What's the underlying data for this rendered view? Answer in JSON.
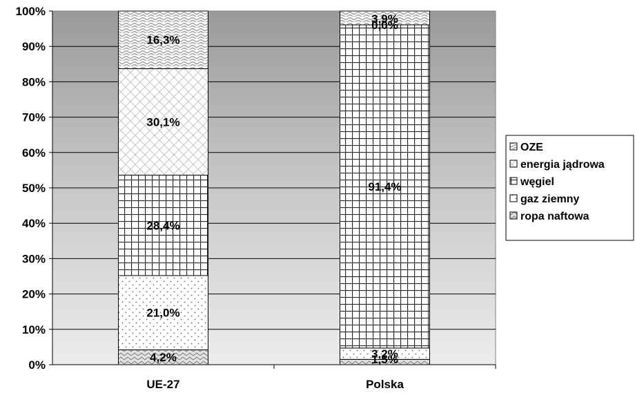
{
  "chart_data": {
    "type": "bar",
    "stacked": true,
    "categories": [
      "UE-27",
      "Polska"
    ],
    "series": [
      {
        "name": "ropa naftowa",
        "values": [
          4.2,
          1.5
        ],
        "labels": [
          "4,2%",
          "1,5%"
        ]
      },
      {
        "name": "gaz ziemny",
        "values": [
          21.0,
          3.2
        ],
        "labels": [
          "21,0%",
          "3,2%"
        ]
      },
      {
        "name": "węgiel",
        "values": [
          28.4,
          91.4
        ],
        "labels": [
          "28,4%",
          "91,4%"
        ]
      },
      {
        "name": "energia jądrowa",
        "values": [
          30.1,
          0.0
        ],
        "labels": [
          "30,1%",
          "0,0%"
        ]
      },
      {
        "name": "OZE",
        "values": [
          16.3,
          3.9
        ],
        "labels": [
          "16,3%",
          "3,9%"
        ]
      }
    ],
    "legend_order": [
      "OZE",
      "energia jądrowa",
      "węgiel",
      "gaz ziemny",
      "ropa naftowa"
    ],
    "ylim": [
      0,
      100
    ],
    "yticks": [
      "0%",
      "10%",
      "20%",
      "30%",
      "40%",
      "50%",
      "60%",
      "70%",
      "80%",
      "90%",
      "100%"
    ],
    "title": "",
    "xlabel": "",
    "ylabel": "",
    "grid": true,
    "legend_position": "right"
  }
}
